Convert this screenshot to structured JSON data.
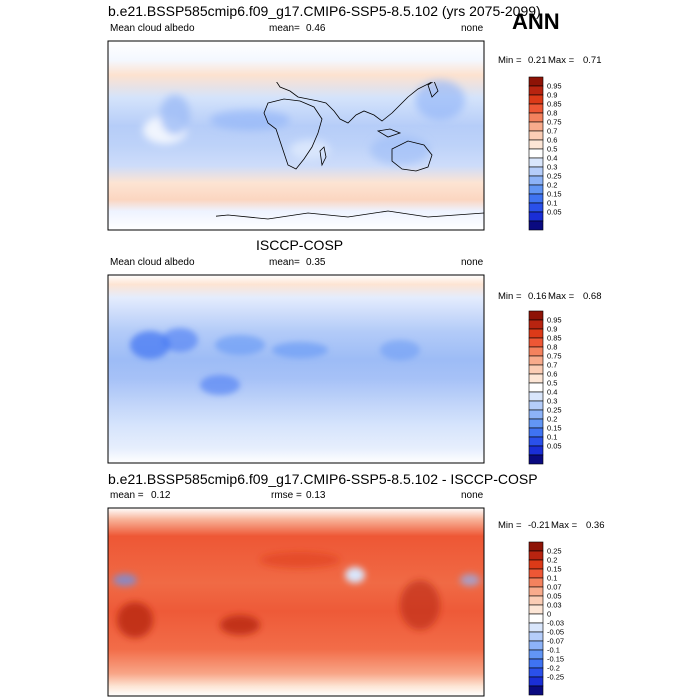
{
  "season": "ANN",
  "colors": {
    "model_scale": [
      "#0a0a80",
      "#1a2ed6",
      "#2a50ea",
      "#3f73f2",
      "#6296f5",
      "#8db3f8",
      "#b5cdfa",
      "#d9e6fc",
      "#ffffff",
      "#fde6d6",
      "#fbcdb5",
      "#f8ab8c",
      "#f4825e",
      "#ee5735",
      "#dc3a18",
      "#b82410",
      "#8e1306"
    ],
    "diff_scale": [
      "#0a0a80",
      "#1a2ed6",
      "#2a50ea",
      "#3f73f2",
      "#6296f5",
      "#8db3f8",
      "#b5cdfa",
      "#d9e6fc",
      "#ffffff",
      "#fde6d6",
      "#fbcdb5",
      "#f8ab8c",
      "#f4825e",
      "#ee5735",
      "#dc3a18",
      "#b82410",
      "#8e1306"
    ]
  },
  "chart_data": [
    {
      "type": "heatmap",
      "title": "b.e21.BSSP585cmip6.f09_g17.CMIP6-SSP5-8.5.102 (yrs 2075-2099)",
      "left_label": "Mean cloud albedo",
      "stat_label": "mean=",
      "stat_value": "0.46",
      "units": "none",
      "min_label": "Min =",
      "min_value": "0.21",
      "max_label": "Max =",
      "max_value": "0.71",
      "colorbar_levels": [
        "0.95",
        "0.9",
        "0.85",
        "0.8",
        "0.75",
        "0.7",
        "0.6",
        "0.5",
        "0.4",
        "0.3",
        "0.25",
        "0.2",
        "0.15",
        "0.1",
        "0.05"
      ]
    },
    {
      "type": "heatmap",
      "title": "ISCCP-COSP",
      "left_label": "Mean cloud albedo",
      "stat_label": "mean=",
      "stat_value": "0.35",
      "units": "none",
      "min_label": "Min =",
      "min_value": "0.16",
      "max_label": "Max =",
      "max_value": "0.68",
      "colorbar_levels": [
        "0.95",
        "0.9",
        "0.85",
        "0.8",
        "0.75",
        "0.7",
        "0.6",
        "0.5",
        "0.4",
        "0.3",
        "0.25",
        "0.2",
        "0.15",
        "0.1",
        "0.05"
      ]
    },
    {
      "type": "heatmap",
      "title": "b.e21.BSSP585cmip6.f09_g17.CMIP6-SSP5-8.5.102 - ISCCP-COSP",
      "left_label": "mean =",
      "left_value": "0.12",
      "stat_label": "rmse =",
      "stat_value": "0.13",
      "units": "none",
      "min_label": "Min =",
      "min_value": "-0.21",
      "max_label": "Max =",
      "max_value": "0.36",
      "colorbar_levels": [
        "0.25",
        "0.2",
        "0.15",
        "0.1",
        "0.07",
        "0.05",
        "0.03",
        "0",
        "-0.03",
        "-0.05",
        "-0.07",
        "-0.1",
        "-0.15",
        "-0.2",
        "-0.25"
      ]
    }
  ]
}
